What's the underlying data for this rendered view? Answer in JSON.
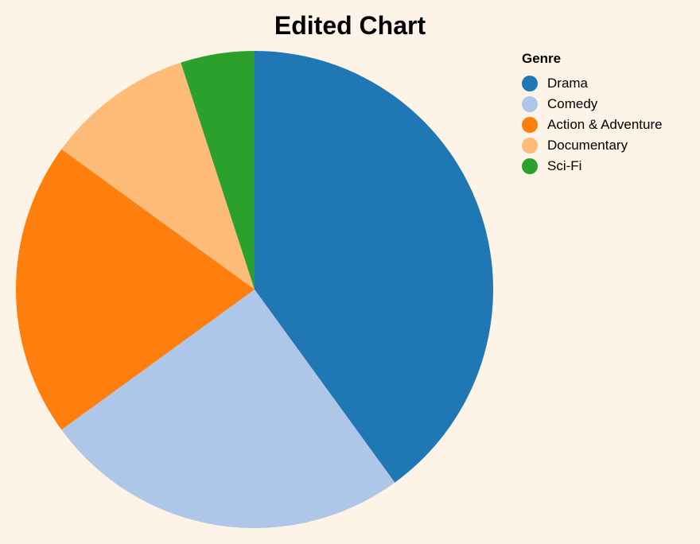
{
  "chart_data": {
    "type": "pie",
    "title": "Edited Chart",
    "legend_title": "Genre",
    "legend_position": "top-right",
    "categories": [
      "Drama",
      "Comedy",
      "Action & Adventure",
      "Documentary",
      "Sci-Fi"
    ],
    "values": [
      40,
      25,
      20,
      10,
      5
    ],
    "colors": [
      "#1f77b4",
      "#aec7e8",
      "#ff7f0e",
      "#ffbb78",
      "#2ca02c"
    ]
  }
}
